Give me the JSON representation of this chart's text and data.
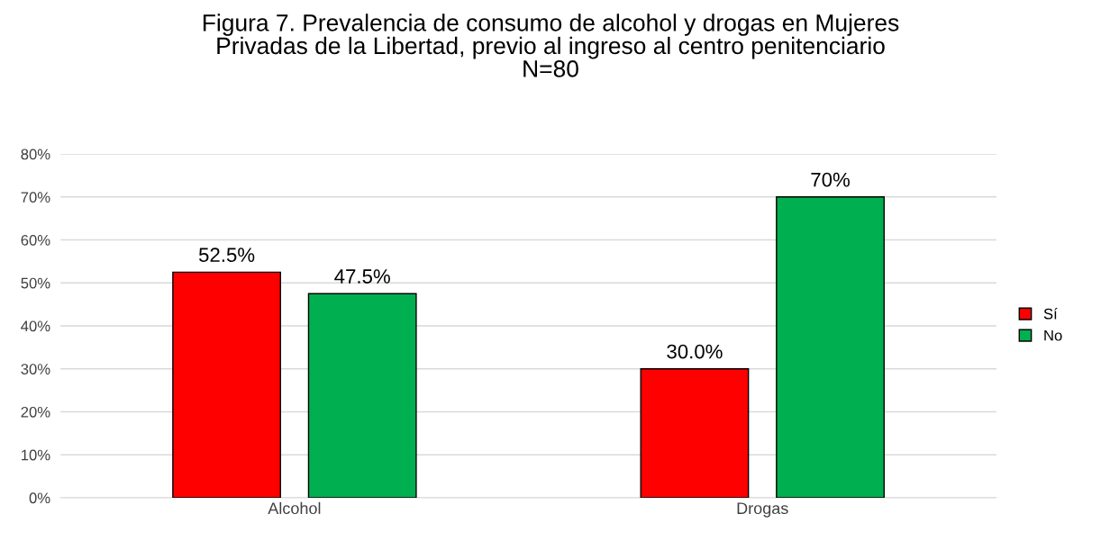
{
  "chart_data": {
    "type": "bar",
    "title": "Figura 7. Prevalencia de consumo de alcohol y drogas en Mujeres\nPrivadas de la Libertad, previo al ingreso al centro penitenciario\nN=80",
    "categories": [
      "Alcohol",
      "Drogas"
    ],
    "series": [
      {
        "name": "Sí",
        "color": "#ff0000",
        "values": [
          52.5,
          30.0
        ],
        "value_labels": [
          "52.5%",
          "30.0%"
        ]
      },
      {
        "name": "No",
        "color": "#00b050",
        "values": [
          47.5,
          70
        ],
        "value_labels": [
          "47.5%",
          "70%"
        ]
      }
    ],
    "ylim": [
      0,
      80
    ],
    "yticks": [
      {
        "value": 0,
        "label": "0%"
      },
      {
        "value": 10,
        "label": "10%"
      },
      {
        "value": 20,
        "label": "20%"
      },
      {
        "value": 30,
        "label": "30%"
      },
      {
        "value": 40,
        "label": "40%"
      },
      {
        "value": 50,
        "label": "50%"
      },
      {
        "value": 60,
        "label": "60%"
      },
      {
        "value": 70,
        "label": "70%"
      },
      {
        "value": 80,
        "label": "80%"
      }
    ],
    "grid": "y",
    "legend": "right"
  }
}
